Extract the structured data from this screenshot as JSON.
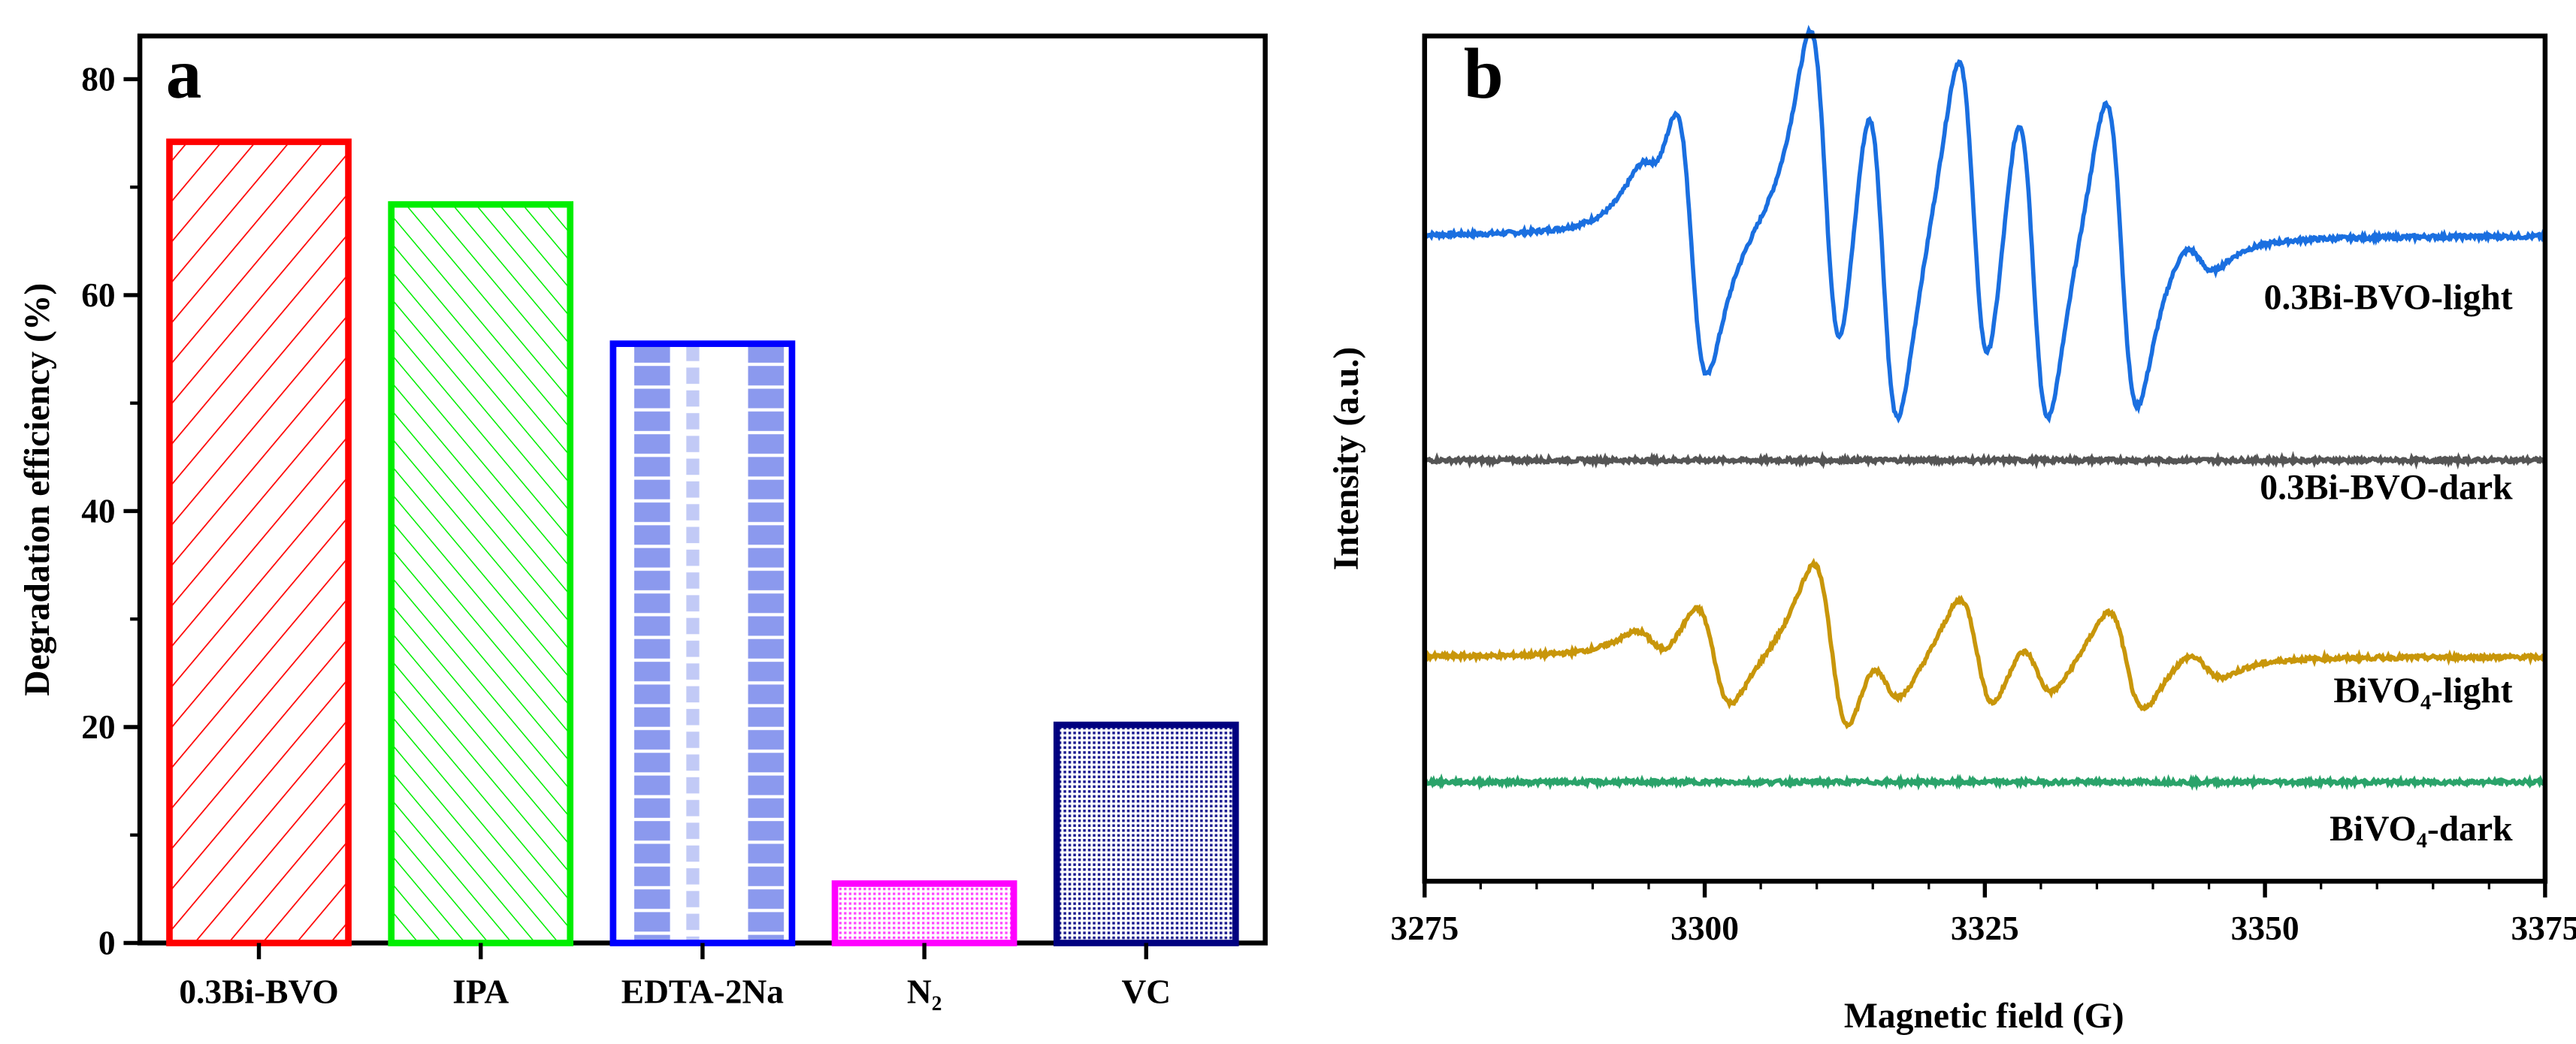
{
  "chart_data": [
    {
      "type": "bar",
      "panel_label": "a",
      "title": "",
      "xlabel": "",
      "ylabel": "Degradation efficiency (%)",
      "categories": [
        "0.3Bi-BVO",
        "IPA",
        "EDTA-2Na",
        "N₂",
        "VC"
      ],
      "values": [
        74.2,
        68.4,
        55.5,
        5.5,
        20.2
      ],
      "colors": [
        "#ff0000",
        "#00ee00",
        "#0000ff",
        "#ff00ff",
        "#000080"
      ],
      "fill_patterns": [
        "hatch-right",
        "hatch-left",
        "vertical-dots",
        "dense-dots",
        "dense-dots"
      ],
      "ylim": [
        0,
        84
      ],
      "yticks": [
        0,
        20,
        40,
        60,
        80
      ],
      "grid": false
    },
    {
      "type": "line",
      "panel_label": "b",
      "title": "",
      "xlabel": "Magnetic field (G)",
      "ylabel": "Intensity (a.u.)",
      "xlim": [
        3275,
        3375
      ],
      "xticks": [
        3275,
        3300,
        3325,
        3350,
        3375
      ],
      "ylim": [
        0,
        5.2
      ],
      "grid": false,
      "series": [
        {
          "name": "0.3Bi-BVO-light",
          "color": "#1a6fe0",
          "baseline": 3.97,
          "linewidth_G": 2.5,
          "line_centers_G": [
            3295.3,
            3298.8,
            3310.8,
            3315.9,
            3324.0,
            3329.3,
            3337.2,
            3344.1
          ],
          "line_amplitudes": [
            0.17,
            0.87,
            1.12,
            1.13,
            1.09,
            1.09,
            0.99,
            0.12
          ]
        },
        {
          "name": "0.3Bi-BVO-dark",
          "color": "#555555",
          "baseline": 2.59,
          "linewidth_G": 2.5,
          "line_centers_G": [],
          "line_amplitudes": []
        },
        {
          "name": "BiVO₄-light",
          "color": "#c8960a",
          "baseline": 1.38,
          "linewidth_G": 2.8,
          "line_centers_G": [
            3295.3,
            3300.8,
            3311.3,
            3316.1,
            3324.3,
            3329.6,
            3337.6,
            3344.6
          ],
          "line_amplitudes": [
            0.1,
            0.32,
            0.55,
            0.2,
            0.37,
            0.2,
            0.32,
            0.09
          ]
        },
        {
          "name": "BiVO₄-dark",
          "color": "#2aa36a",
          "baseline": 0.61,
          "linewidth_G": 2.5,
          "line_centers_G": [],
          "line_amplitudes": []
        }
      ]
    }
  ]
}
